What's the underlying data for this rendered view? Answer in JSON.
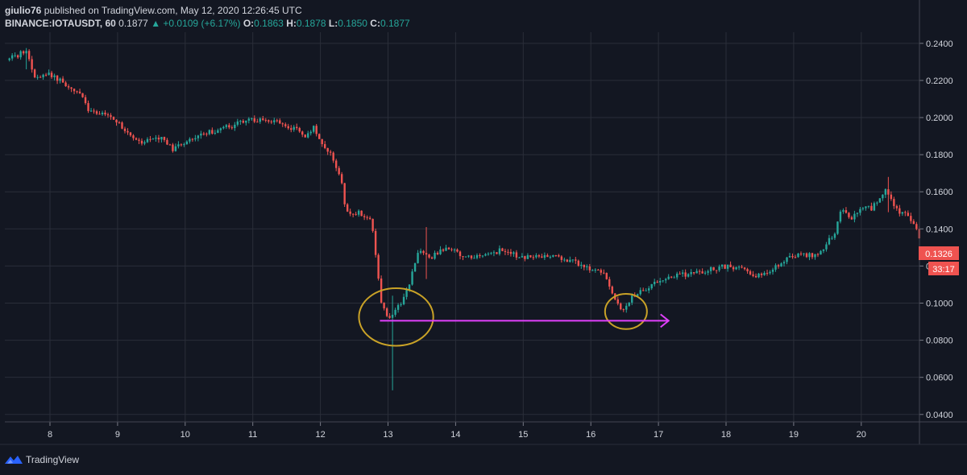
{
  "header": {
    "author": "giulio76",
    "published_text": "published on TradingView.com, May 12, 2020 12:26:45 UTC",
    "symbol": "BINANCE:IOTAUSDT, 60",
    "last": "0.1877",
    "change": "▲ +0.0109 (+6.17%)",
    "o_label": "O:",
    "o_value": "0.1863",
    "h_label": "H:",
    "h_value": "0.1878",
    "l_label": "L:",
    "l_value": "0.1850",
    "c_label": "C:",
    "c_value": "0.1877"
  },
  "price_tag": {
    "value": "0.1326",
    "countdown": "33:17"
  },
  "brand": {
    "name": "TradingView",
    "icon": "tradingview-logo-icon"
  },
  "colors": {
    "background": "#131722",
    "grid": "#2a2e39",
    "up": "#26a69a",
    "down": "#ef5350",
    "annotation_circle": "#c9a227",
    "annotation_arrow": "#e040fb",
    "tag": "#ef5350"
  },
  "chart_data": {
    "type": "candlestick",
    "x_ticks": [
      "8",
      "9",
      "10",
      "11",
      "12",
      "13",
      "14",
      "15",
      "16",
      "17",
      "18",
      "19",
      "20"
    ],
    "y_ticks": [
      "0.2400",
      "0.2200",
      "0.2000",
      "0.1800",
      "0.1600",
      "0.1400",
      "0.1200",
      "0.1000",
      "0.0800",
      "0.0600",
      "0.0400"
    ],
    "ylim": [
      0.036,
      0.246
    ],
    "xlim": [
      7.4,
      20.9
    ],
    "grid": true,
    "path": [
      [
        7.4,
        0.231
      ],
      [
        7.7,
        0.236
      ],
      [
        7.8,
        0.222
      ],
      [
        8.0,
        0.224
      ],
      [
        8.5,
        0.213
      ],
      [
        8.6,
        0.205
      ],
      [
        9.0,
        0.199
      ],
      [
        9.2,
        0.192
      ],
      [
        9.4,
        0.186
      ],
      [
        9.7,
        0.19
      ],
      [
        9.85,
        0.183
      ],
      [
        10.0,
        0.186
      ],
      [
        10.2,
        0.19
      ],
      [
        10.6,
        0.194
      ],
      [
        11.0,
        0.199
      ],
      [
        11.4,
        0.198
      ],
      [
        11.7,
        0.193
      ],
      [
        11.85,
        0.19
      ],
      [
        11.95,
        0.195
      ],
      [
        12.05,
        0.187
      ],
      [
        12.2,
        0.18
      ],
      [
        12.35,
        0.166
      ],
      [
        12.42,
        0.149
      ],
      [
        12.6,
        0.149
      ],
      [
        12.8,
        0.145
      ],
      [
        12.95,
        0.099
      ],
      [
        13.05,
        0.091
      ],
      [
        13.2,
        0.098
      ],
      [
        13.35,
        0.11
      ],
      [
        13.5,
        0.129
      ],
      [
        13.7,
        0.125
      ],
      [
        13.9,
        0.13
      ],
      [
        14.2,
        0.125
      ],
      [
        14.5,
        0.126
      ],
      [
        14.75,
        0.129
      ],
      [
        15.0,
        0.124
      ],
      [
        15.45,
        0.126
      ],
      [
        15.9,
        0.121
      ],
      [
        16.25,
        0.115
      ],
      [
        16.4,
        0.102
      ],
      [
        16.5,
        0.094
      ],
      [
        16.65,
        0.104
      ],
      [
        16.85,
        0.108
      ],
      [
        17.2,
        0.115
      ],
      [
        17.6,
        0.116
      ],
      [
        18.0,
        0.12
      ],
      [
        18.3,
        0.118
      ],
      [
        18.5,
        0.115
      ],
      [
        18.8,
        0.12
      ],
      [
        19.0,
        0.126
      ],
      [
        19.4,
        0.126
      ],
      [
        19.55,
        0.133
      ],
      [
        19.65,
        0.137
      ],
      [
        19.75,
        0.151
      ],
      [
        19.9,
        0.146
      ],
      [
        20.05,
        0.152
      ],
      [
        20.2,
        0.151
      ],
      [
        20.4,
        0.161
      ],
      [
        20.55,
        0.15
      ],
      [
        20.75,
        0.147
      ],
      [
        20.9,
        0.136
      ]
    ],
    "wick_extremes": [
      {
        "x": 13.05,
        "low": 0.053,
        "high": 0.104
      },
      {
        "x": 13.55,
        "low": 0.113,
        "high": 0.141
      },
      {
        "x": 7.65,
        "low": 0.226,
        "high": 0.237
      },
      {
        "x": 20.4,
        "low": 0.149,
        "high": 0.168
      }
    ],
    "annotations": [
      {
        "type": "ellipse",
        "cx": 13.12,
        "cy": 0.0925,
        "rx": 0.55,
        "ry": 0.0155
      },
      {
        "type": "ellipse",
        "cx": 16.52,
        "cy": 0.0955,
        "rx": 0.31,
        "ry": 0.0095
      },
      {
        "type": "arrow",
        "x1": 12.88,
        "x2": 17.15,
        "y": 0.0905
      }
    ]
  }
}
